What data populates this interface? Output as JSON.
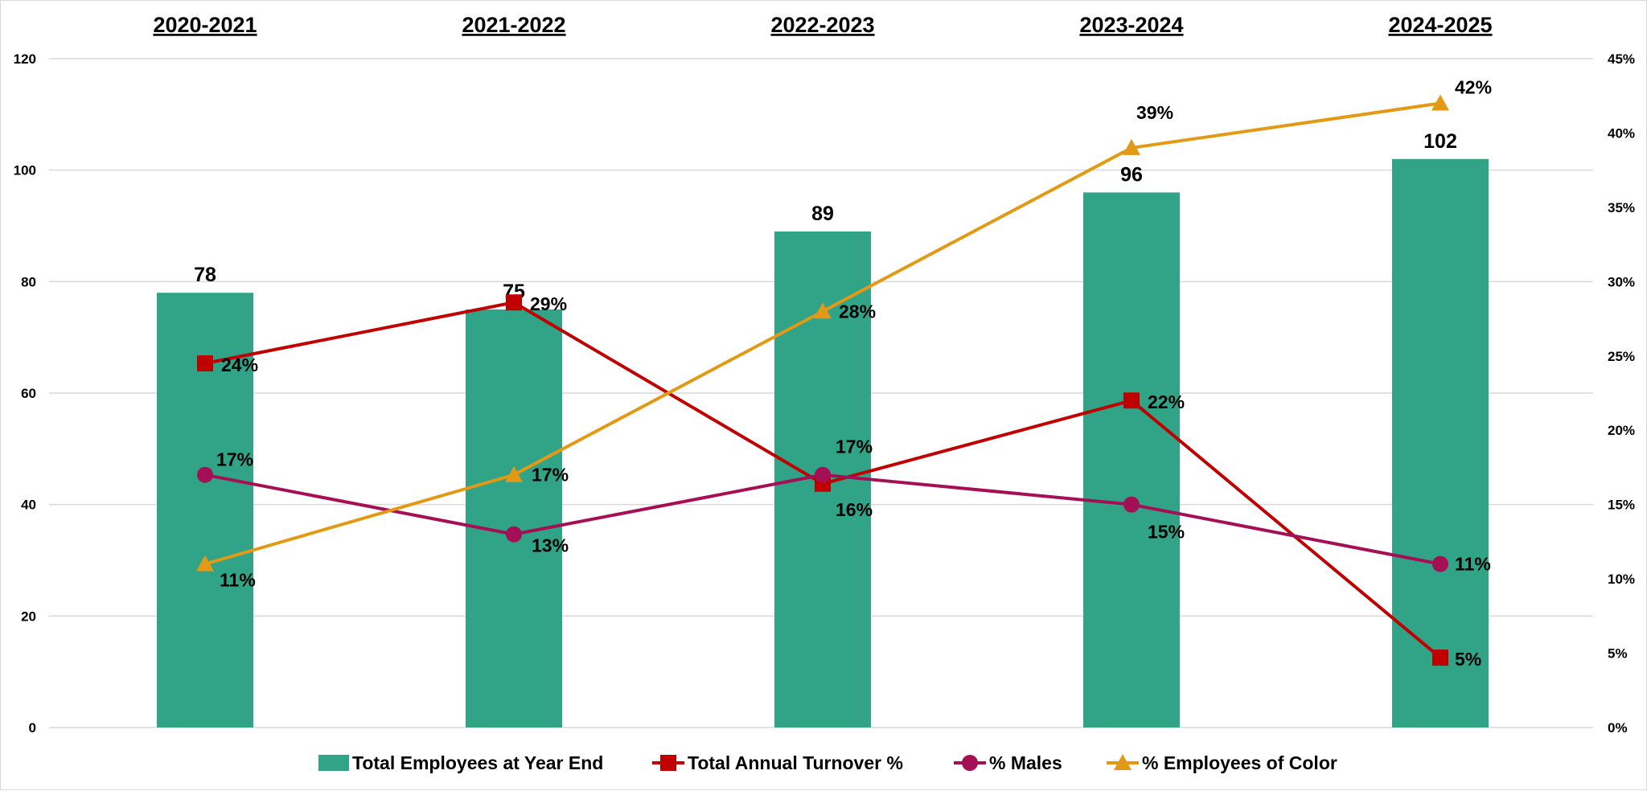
{
  "chart_data": {
    "type": "bar",
    "categories": [
      "2020-2021",
      "2021-2022",
      "2022-2023",
      "2023-2024",
      "2024-2025"
    ],
    "y_left": {
      "ticks": [
        "0",
        "20",
        "40",
        "60",
        "80",
        "100",
        "120"
      ],
      "ylim": [
        0,
        120
      ]
    },
    "y_right": {
      "ticks": [
        "0%",
        "5%",
        "10%",
        "15%",
        "20%",
        "25%",
        "30%",
        "35%",
        "40%",
        "45%"
      ],
      "ylim": [
        0,
        45
      ]
    },
    "bars": {
      "name": "Total Employees at Year End",
      "values": [
        78,
        75,
        89,
        96,
        102
      ],
      "labels": [
        "78",
        "75",
        "89",
        "96",
        "102"
      ],
      "color": "#31a386"
    },
    "series": [
      {
        "name": "Total Annual Turnover %",
        "values": [
          24.5,
          28.6,
          16.4,
          22,
          4.7
        ],
        "labels": [
          "24%",
          "29%",
          "16%",
          "22%",
          "5%"
        ],
        "color": "#c00000",
        "marker": "square"
      },
      {
        "name": "% Males",
        "values": [
          17,
          13,
          17,
          15,
          11
        ],
        "labels": [
          "17%",
          "13%",
          "17%",
          "15%",
          "11%"
        ],
        "color": "#a50f55",
        "marker": "circle"
      },
      {
        "name": "% Employees of Color",
        "values": [
          11,
          17,
          28,
          39,
          42
        ],
        "labels": [
          "11%",
          "17%",
          "28%",
          "39%",
          "42%"
        ],
        "color": "#e29a16",
        "marker": "triangle"
      }
    ],
    "grid": true,
    "legend_position": "bottom"
  }
}
